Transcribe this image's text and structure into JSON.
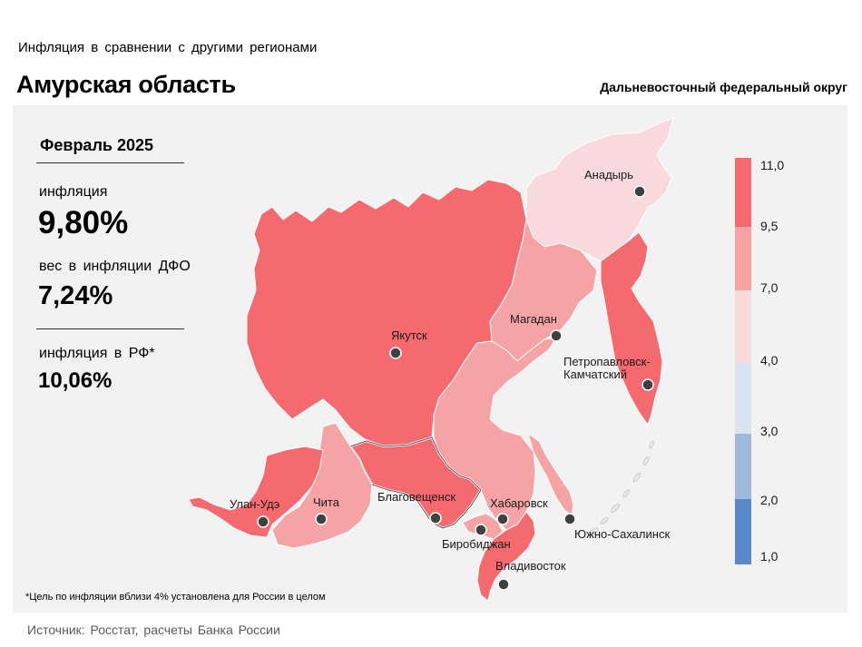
{
  "header": {
    "subtitle": "Инфляция  в сравнении  с другими  регионами",
    "title": "Амурская область",
    "district": "Дальневосточный федеральный округ"
  },
  "stats": {
    "period": "Февраль 2025",
    "inflation_label": "инфляция",
    "inflation_value": "9,80%",
    "weight_label": "вес в инфляции  ДФО",
    "weight_value": "7,24%",
    "russia_label": "инфляция  в РФ*",
    "russia_value": "10,06%"
  },
  "footnote": "*Цель по инфляции вблизи 4% установлена для России в целом",
  "source": "Источник: Росстат, расчеты  Банка  России",
  "legend": {
    "ticks": [
      "11,0",
      "9,5",
      "7,0",
      "4,0",
      "3,0",
      "2,0",
      "1,0"
    ],
    "colors": [
      "#f46a6e",
      "#f6a3a5",
      "#f8d9dc",
      "#d9e3f2",
      "#9fb8dc",
      "#5b88c6"
    ]
  },
  "highlight_region": "Амурская область",
  "colors": {
    "high": "#f46a6e",
    "mid": "#f6a3a5",
    "low": "#f8d9dc",
    "panel": "#f2f2f2",
    "city_dot": "#404040"
  },
  "cities": [
    {
      "name": "Анадырь"
    },
    {
      "name": "Магадан"
    },
    {
      "name": "Якутск"
    },
    {
      "name": "Петропавловск-"
    },
    {
      "name": "Камчатский"
    },
    {
      "name": "Улан-Удэ"
    },
    {
      "name": "Чита"
    },
    {
      "name": "Благовещенск"
    },
    {
      "name": "Хабаровск"
    },
    {
      "name": "Биробиджан"
    },
    {
      "name": "Южно-Сахалинск"
    },
    {
      "name": "Владивосток"
    }
  ]
}
